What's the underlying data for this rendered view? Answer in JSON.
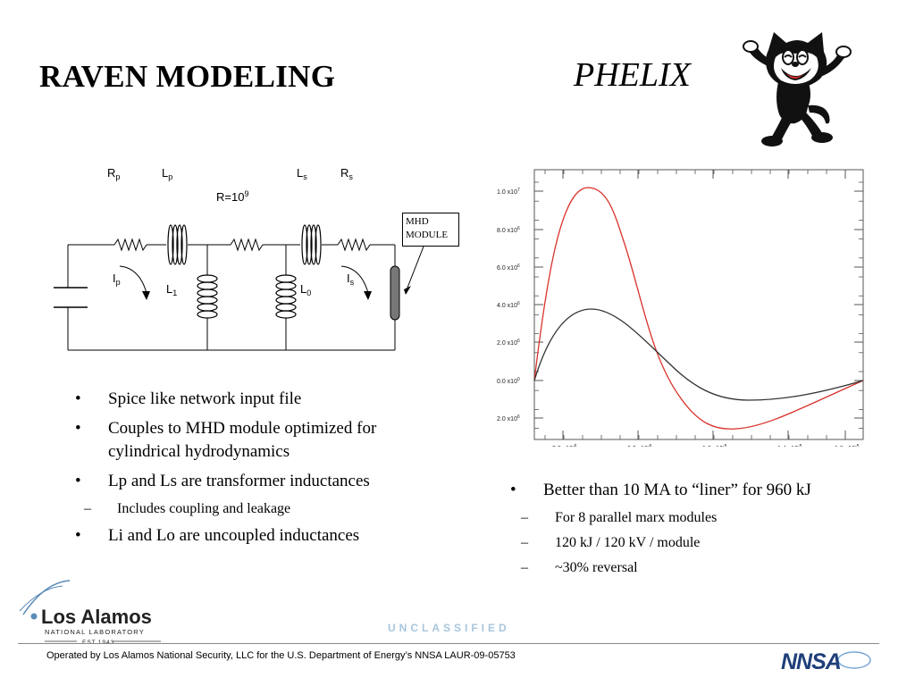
{
  "title_left": "RAVEN MODELING",
  "title_right": "PHELIX",
  "circuit": {
    "labels": {
      "rp_main": "R",
      "rp_sub": "p",
      "lp_main": "L",
      "lp_sub": "p",
      "ls_main": "L",
      "ls_sub": "s",
      "rs_main": "R",
      "rs_sub": "s",
      "r_main": "R=10",
      "r_exp": "9",
      "ip_main": "I",
      "ip_sub": "p",
      "l1_main": "L",
      "l1_sub": "1",
      "l0_main": "L",
      "l0_sub": "0",
      "is_main": "I",
      "is_sub": "s"
    },
    "mhd_line1": "MHD",
    "mhd_line2": "MODULE"
  },
  "plot": {
    "y_ticks": [
      {
        "mant": "1.0 x10",
        "exp": "7"
      },
      {
        "mant": "8.0 x10",
        "exp": "6"
      },
      {
        "mant": "6.0 x10",
        "exp": "6"
      },
      {
        "mant": "4.0 x10",
        "exp": "6"
      },
      {
        "mant": "2.0 x10",
        "exp": "6"
      },
      {
        "mant": "0.0 x10",
        "exp": "0"
      },
      {
        "mant": "2.0 x10",
        "exp": "6"
      }
    ],
    "x_ticks": [
      {
        "mant": "2.0 x10",
        "exp": "-6"
      },
      {
        "mant": "6.0 x10",
        "exp": "-6"
      },
      {
        "mant": "1.0 x10",
        "exp": "-5"
      },
      {
        "mant": "1.4 x10",
        "exp": "-5"
      },
      {
        "mant": "1.8 x10",
        "exp": "-5"
      }
    ],
    "colors": {
      "red": "#d9322b",
      "black": "#333333"
    }
  },
  "bullets_left": [
    {
      "level": 1,
      "text": "Spice like network input file"
    },
    {
      "level": 1,
      "text": "Couples to MHD module optimized for cylindrical hydrodynamics"
    },
    {
      "level": 1,
      "text": "Lp and Ls are transformer inductances"
    },
    {
      "level": 2,
      "text": "Includes coupling and leakage"
    },
    {
      "level": 1,
      "text": "Li and Lo are uncoupled inductances"
    }
  ],
  "bullets_right": [
    {
      "level": 1,
      "text": "Better than 10 MA to “liner” for 960 kJ"
    },
    {
      "level": 2,
      "text": "For 8 parallel marx modules"
    },
    {
      "level": 2,
      "text": "120 kJ / 120 kV / module"
    },
    {
      "level": 2,
      "text": "~30% reversal"
    }
  ],
  "logo": {
    "name": "Los Alamos",
    "sub": "NATIONAL LABORATORY",
    "est": "EST.1943"
  },
  "classification": "UNCLASSIFIED",
  "footer": "Operated by Los Alamos National Security, LLC for the U.S. Department of Energy’s NNSA   LAUR-09-05753",
  "nnsa_logo": "NNSA"
}
